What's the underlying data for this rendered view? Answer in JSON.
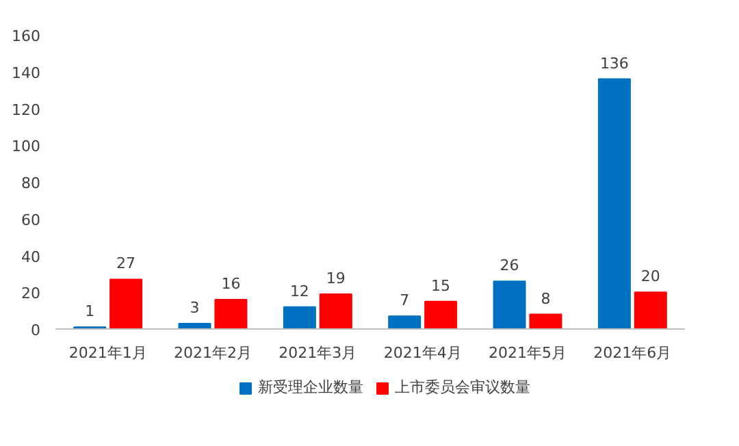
{
  "chart_data": {
    "type": "bar",
    "categories": [
      "2021年1月",
      "2021年2月",
      "2021年3月",
      "2021年4月",
      "2021年5月",
      "2021年6月"
    ],
    "series": [
      {
        "name": "新受理企业数量",
        "color": "#0070c0",
        "values": [
          1,
          3,
          12,
          7,
          26,
          136
        ]
      },
      {
        "name": "上市委员会审议数量",
        "color": "#ff0000",
        "values": [
          27,
          16,
          19,
          15,
          8,
          20
        ]
      }
    ],
    "ylim": [
      0,
      160
    ],
    "yticks": [
      0,
      20,
      40,
      60,
      80,
      100,
      120,
      140,
      160
    ],
    "data_labels": true,
    "grid": false,
    "legend": "bottom"
  }
}
